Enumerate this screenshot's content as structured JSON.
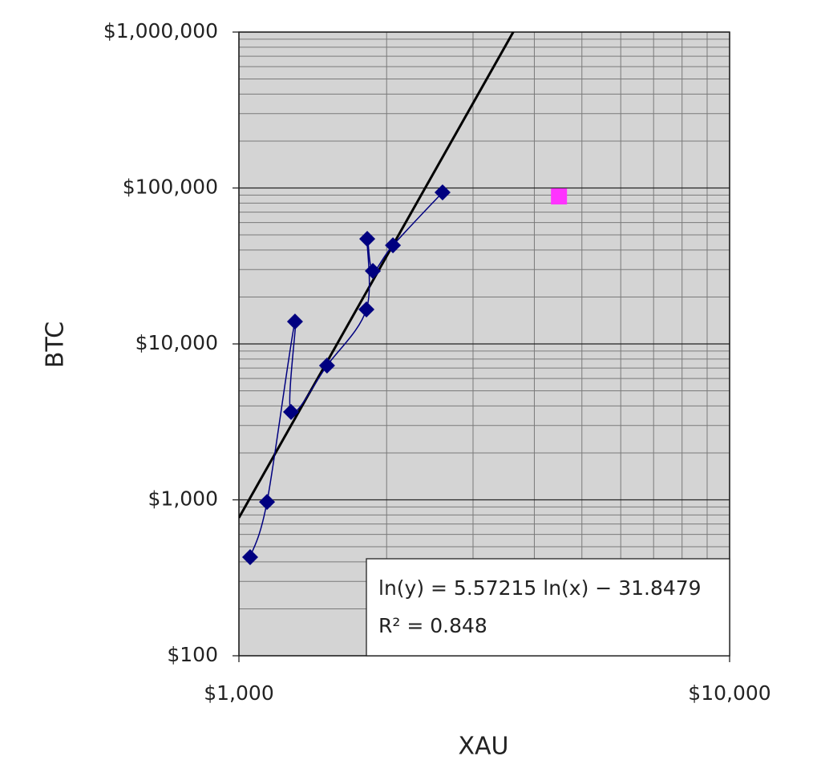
{
  "chart_data": {
    "type": "scatter",
    "x_label": "XAU",
    "y_label": "BTC",
    "xscale": "log",
    "yscale": "log",
    "xlim": [
      1000,
      10000
    ],
    "ylim": [
      100,
      1000000
    ],
    "xticks": [
      {
        "value": 1000,
        "label": "$1,000"
      },
      {
        "value": 10000,
        "label": "$10,000"
      }
    ],
    "yticks": [
      {
        "value": 100,
        "label": "$100"
      },
      {
        "value": 1000,
        "label": "$1,000"
      },
      {
        "value": 10000,
        "label": "$10,000"
      },
      {
        "value": 100000,
        "label": "$100,000"
      },
      {
        "value": 1000000,
        "label": "$1,000,000"
      }
    ],
    "grid": true,
    "minor_grid": true,
    "plot_background": "#d4d4d4",
    "series": [
      {
        "color": "#000080",
        "marker": "diamond",
        "line": "smooth",
        "x": [
          1054,
          1141,
          1301,
          1277,
          1512,
          1819,
          1826,
          1875,
          2060,
          2600
        ],
        "values": [
          429,
          970,
          13900,
          3660,
          7260,
          16640,
          47150,
          29380,
          42870,
          93740
        ]
      },
      {
        "color": "#ff33ff",
        "marker": "square",
        "x": [
          4490
        ],
        "values": [
          88300
        ]
      }
    ],
    "trendline": {
      "color": "#000000",
      "equation": "ln(y) = 5.57215 ln(x) − 31.8479",
      "r_squared": "R² = 0.848"
    }
  }
}
